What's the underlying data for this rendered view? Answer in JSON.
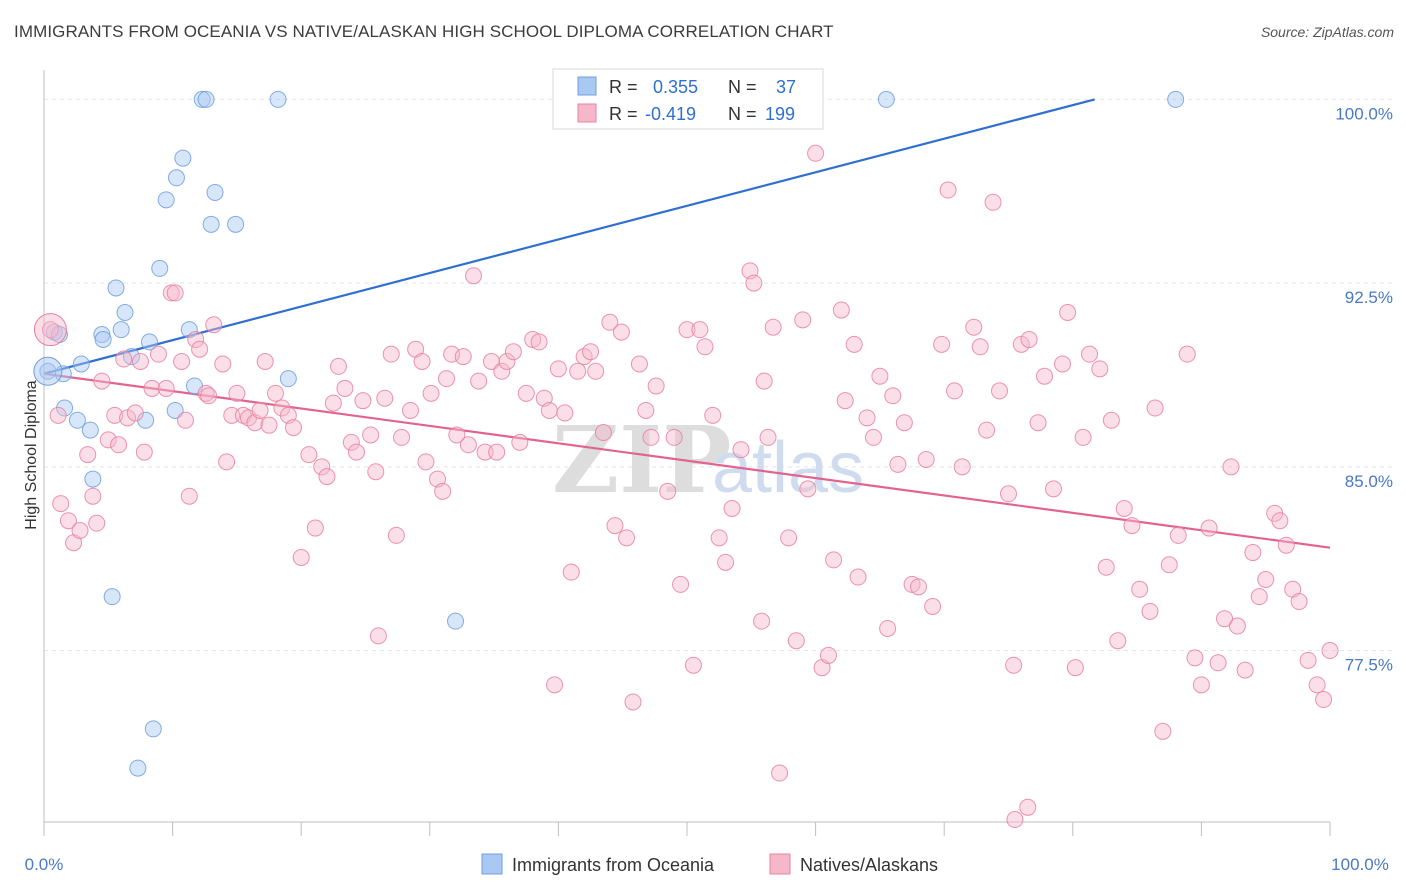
{
  "header": {
    "title": "IMMIGRANTS FROM OCEANIA VS NATIVE/ALASKAN HIGH SCHOOL DIPLOMA CORRELATION CHART",
    "source": "Source: ZipAtlas.com"
  },
  "watermark": {
    "zip": "ZIP",
    "atlas": "atlas"
  },
  "stats": {
    "r_label": "R =",
    "n_label": "N =",
    "rows": [
      {
        "r": "0.355",
        "n": "37",
        "color": "#a9c8f2"
      },
      {
        "r": "-0.419",
        "n": "199",
        "color": "#f6b7cb"
      }
    ]
  },
  "chart_data": {
    "type": "scatter",
    "title": "IMMIGRANTS FROM OCEANIA VS NATIVE/ALASKAN HIGH SCHOOL DIPLOMA CORRELATION CHART",
    "xlabel": "",
    "ylabel": "High School Diploma",
    "xlim": [
      0,
      100
    ],
    "ylim": [
      70.5,
      101.2
    ],
    "x_tick_labels": [
      "0.0%",
      "100.0%"
    ],
    "y_ticks": [
      {
        "value": 100.0,
        "label": "100.0%"
      },
      {
        "value": 92.5,
        "label": "92.5%"
      },
      {
        "value": 85.0,
        "label": "85.0%"
      },
      {
        "value": 77.5,
        "label": "77.5%"
      }
    ],
    "legend_position": "bottom",
    "grid": true,
    "series": [
      {
        "name": "Immigrants from Oceania",
        "color": "#a9c8f2",
        "stroke": "#6f9fde",
        "trend": {
          "x": [
            0,
            81.7
          ],
          "y": [
            88.8,
            100.0
          ],
          "color": "#2f6fd0"
        },
        "points": [
          [
            0.3,
            88.9
          ],
          [
            0.8,
            90.5
          ],
          [
            1.2,
            90.4
          ],
          [
            1.5,
            88.8
          ],
          [
            1.6,
            87.4
          ],
          [
            2.6,
            86.9
          ],
          [
            2.9,
            89.2
          ],
          [
            3.6,
            86.5
          ],
          [
            3.8,
            84.5
          ],
          [
            4.5,
            90.4
          ],
          [
            4.6,
            90.2
          ],
          [
            5.3,
            79.7
          ],
          [
            5.6,
            92.3
          ],
          [
            6.0,
            90.6
          ],
          [
            6.3,
            91.3
          ],
          [
            6.8,
            89.5
          ],
          [
            7.3,
            72.7
          ],
          [
            7.9,
            86.9
          ],
          [
            8.2,
            90.1
          ],
          [
            8.5,
            74.3
          ],
          [
            9.0,
            93.1
          ],
          [
            9.5,
            95.9
          ],
          [
            10.2,
            87.3
          ],
          [
            10.3,
            96.8
          ],
          [
            10.8,
            97.6
          ],
          [
            11.3,
            90.6
          ],
          [
            11.7,
            88.3
          ],
          [
            12.3,
            100.0
          ],
          [
            12.6,
            100.0
          ],
          [
            13.0,
            94.9
          ],
          [
            13.3,
            96.2
          ],
          [
            14.9,
            94.9
          ],
          [
            18.2,
            100.0
          ],
          [
            19.0,
            88.6
          ],
          [
            32.0,
            78.7
          ],
          [
            65.5,
            100.0
          ],
          [
            88.0,
            100.0
          ]
        ]
      },
      {
        "name": "Natives/Alaskans",
        "color": "#f6b7cb",
        "stroke": "#e8819f",
        "trend": {
          "x": [
            0,
            100
          ],
          "y": [
            88.8,
            81.7
          ],
          "color": "#e2648e"
        },
        "points": [
          [
            0.5,
            90.6
          ],
          [
            1.1,
            87.1
          ],
          [
            1.3,
            83.5
          ],
          [
            1.9,
            82.8
          ],
          [
            2.3,
            81.9
          ],
          [
            2.8,
            82.4
          ],
          [
            3.4,
            85.5
          ],
          [
            3.8,
            83.8
          ],
          [
            4.1,
            82.7
          ],
          [
            4.5,
            88.5
          ],
          [
            5.0,
            86.1
          ],
          [
            5.5,
            87.1
          ],
          [
            5.8,
            85.9
          ],
          [
            6.2,
            89.4
          ],
          [
            6.5,
            87.0
          ],
          [
            7.1,
            87.2
          ],
          [
            7.5,
            89.3
          ],
          [
            7.8,
            85.6
          ],
          [
            8.4,
            88.2
          ],
          [
            8.9,
            89.6
          ],
          [
            9.5,
            88.2
          ],
          [
            9.9,
            92.1
          ],
          [
            10.2,
            92.1
          ],
          [
            10.7,
            89.3
          ],
          [
            11.0,
            86.9
          ],
          [
            11.3,
            83.8
          ],
          [
            11.8,
            90.2
          ],
          [
            12.1,
            89.8
          ],
          [
            12.6,
            88.0
          ],
          [
            12.8,
            87.9
          ],
          [
            13.2,
            90.8
          ],
          [
            13.9,
            89.2
          ],
          [
            14.2,
            85.2
          ],
          [
            14.6,
            87.1
          ],
          [
            15.0,
            88.0
          ],
          [
            15.5,
            87.1
          ],
          [
            15.9,
            87.0
          ],
          [
            16.4,
            86.8
          ],
          [
            16.8,
            87.3
          ],
          [
            17.2,
            89.3
          ],
          [
            17.5,
            86.7
          ],
          [
            18.0,
            88.0
          ],
          [
            18.5,
            87.4
          ],
          [
            19.0,
            87.1
          ],
          [
            19.4,
            86.6
          ],
          [
            20.0,
            81.3
          ],
          [
            20.6,
            85.5
          ],
          [
            21.1,
            82.5
          ],
          [
            21.6,
            85.0
          ],
          [
            22.0,
            84.6
          ],
          [
            22.5,
            87.6
          ],
          [
            22.9,
            89.1
          ],
          [
            23.4,
            88.2
          ],
          [
            23.9,
            86.0
          ],
          [
            24.3,
            85.6
          ],
          [
            24.8,
            87.7
          ],
          [
            25.4,
            86.3
          ],
          [
            25.8,
            84.8
          ],
          [
            26.0,
            78.1
          ],
          [
            26.5,
            87.8
          ],
          [
            27.0,
            89.6
          ],
          [
            27.4,
            82.2
          ],
          [
            27.8,
            86.2
          ],
          [
            28.5,
            87.3
          ],
          [
            28.9,
            89.8
          ],
          [
            29.4,
            89.3
          ],
          [
            29.7,
            85.2
          ],
          [
            30.1,
            88.0
          ],
          [
            30.6,
            84.5
          ],
          [
            31.0,
            84.0
          ],
          [
            31.3,
            88.6
          ],
          [
            31.7,
            89.6
          ],
          [
            32.1,
            86.3
          ],
          [
            32.6,
            89.5
          ],
          [
            33.0,
            85.9
          ],
          [
            33.4,
            92.8
          ],
          [
            33.8,
            88.5
          ],
          [
            34.3,
            85.6
          ],
          [
            34.8,
            89.3
          ],
          [
            35.2,
            85.6
          ],
          [
            35.6,
            88.9
          ],
          [
            36.0,
            89.3
          ],
          [
            36.5,
            89.7
          ],
          [
            37.0,
            86.0
          ],
          [
            37.5,
            88.0
          ],
          [
            38.0,
            90.2
          ],
          [
            38.5,
            90.1
          ],
          [
            38.9,
            87.8
          ],
          [
            39.3,
            87.3
          ],
          [
            39.7,
            76.1
          ],
          [
            40.0,
            89.0
          ],
          [
            40.5,
            87.2
          ],
          [
            41.0,
            80.7
          ],
          [
            41.5,
            88.9
          ],
          [
            42.0,
            89.5
          ],
          [
            42.5,
            89.7
          ],
          [
            42.9,
            88.9
          ],
          [
            43.5,
            86.4
          ],
          [
            44.0,
            90.9
          ],
          [
            44.4,
            82.6
          ],
          [
            44.9,
            90.5
          ],
          [
            45.3,
            82.1
          ],
          [
            45.8,
            75.4
          ],
          [
            46.3,
            89.2
          ],
          [
            46.8,
            87.3
          ],
          [
            47.2,
            86.2
          ],
          [
            47.6,
            88.3
          ],
          [
            48.5,
            84.0
          ],
          [
            49.0,
            86.2
          ],
          [
            49.5,
            80.2
          ],
          [
            50.0,
            90.6
          ],
          [
            50.5,
            76.9
          ],
          [
            51.0,
            90.6
          ],
          [
            51.4,
            89.9
          ],
          [
            52.0,
            87.1
          ],
          [
            52.5,
            82.1
          ],
          [
            53.0,
            81.1
          ],
          [
            53.5,
            83.3
          ],
          [
            54.2,
            85.7
          ],
          [
            54.9,
            93.0
          ],
          [
            55.2,
            92.5
          ],
          [
            55.8,
            78.7
          ],
          [
            56.0,
            88.5
          ],
          [
            56.3,
            86.2
          ],
          [
            56.7,
            90.7
          ],
          [
            57.2,
            72.5
          ],
          [
            57.9,
            82.1
          ],
          [
            58.5,
            77.9
          ],
          [
            59.0,
            91.0
          ],
          [
            59.4,
            84.1
          ],
          [
            60.0,
            97.8
          ],
          [
            60.5,
            76.8
          ],
          [
            61.0,
            77.3
          ],
          [
            61.4,
            81.2
          ],
          [
            62.0,
            91.4
          ],
          [
            62.3,
            87.7
          ],
          [
            63.0,
            90.0
          ],
          [
            63.3,
            80.5
          ],
          [
            64.0,
            87.0
          ],
          [
            64.5,
            86.2
          ],
          [
            65.0,
            88.7
          ],
          [
            65.6,
            78.4
          ],
          [
            66.0,
            87.9
          ],
          [
            66.4,
            85.1
          ],
          [
            66.9,
            86.8
          ],
          [
            67.5,
            80.2
          ],
          [
            68.0,
            80.1
          ],
          [
            68.6,
            85.3
          ],
          [
            69.1,
            79.3
          ],
          [
            69.8,
            90.0
          ],
          [
            70.3,
            96.3
          ],
          [
            70.8,
            88.1
          ],
          [
            71.4,
            85.0
          ],
          [
            72.3,
            90.7
          ],
          [
            72.8,
            89.9
          ],
          [
            73.3,
            86.5
          ],
          [
            73.8,
            95.8
          ],
          [
            74.3,
            88.1
          ],
          [
            75.0,
            83.9
          ],
          [
            75.4,
            76.9
          ],
          [
            76.0,
            90.0
          ],
          [
            76.6,
            90.2
          ],
          [
            77.3,
            86.8
          ],
          [
            77.8,
            88.7
          ],
          [
            78.5,
            84.1
          ],
          [
            79.2,
            89.2
          ],
          [
            79.6,
            91.3
          ],
          [
            80.2,
            76.8
          ],
          [
            80.8,
            86.2
          ],
          [
            81.3,
            89.6
          ],
          [
            82.1,
            89.0
          ],
          [
            82.6,
            80.9
          ],
          [
            83.0,
            86.9
          ],
          [
            83.5,
            77.9
          ],
          [
            84.0,
            83.3
          ],
          [
            84.6,
            82.6
          ],
          [
            85.2,
            80.0
          ],
          [
            86.0,
            79.1
          ],
          [
            86.4,
            87.4
          ],
          [
            87.0,
            74.2
          ],
          [
            87.5,
            81.0
          ],
          [
            88.2,
            82.2
          ],
          [
            88.9,
            89.6
          ],
          [
            89.5,
            77.2
          ],
          [
            90.0,
            76.1
          ],
          [
            90.6,
            82.5
          ],
          [
            91.3,
            77.0
          ],
          [
            91.8,
            78.8
          ],
          [
            92.3,
            85.0
          ],
          [
            92.8,
            78.5
          ],
          [
            93.4,
            76.7
          ],
          [
            94.0,
            81.5
          ],
          [
            94.5,
            79.7
          ],
          [
            95.0,
            80.4
          ],
          [
            95.7,
            83.1
          ],
          [
            96.1,
            82.8
          ],
          [
            96.6,
            81.8
          ],
          [
            97.1,
            80.0
          ],
          [
            97.6,
            79.5
          ],
          [
            98.3,
            77.1
          ],
          [
            99.0,
            76.1
          ],
          [
            99.5,
            75.5
          ],
          [
            100.0,
            77.5
          ],
          [
            75.5,
            70.6
          ],
          [
            76.5,
            71.1
          ]
        ]
      }
    ]
  }
}
